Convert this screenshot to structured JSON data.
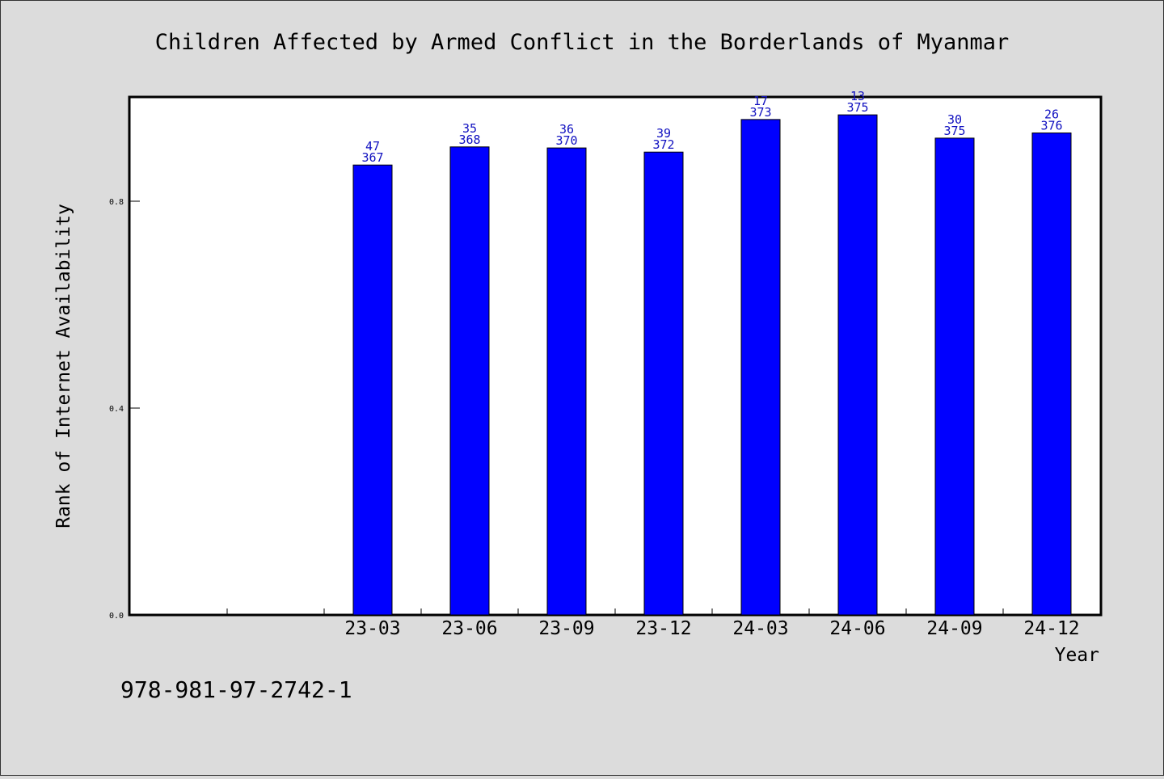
{
  "chart_data": {
    "type": "bar",
    "title": "Children Affected by Armed Conflict in the Borderlands of Myanmar",
    "xlabel": "Year",
    "ylabel": "Rank of Internet Availability",
    "categories": [
      "23-03",
      "23-06",
      "23-09",
      "23-12",
      "24-03",
      "24-06",
      "24-09",
      "24-12"
    ],
    "values": [
      0.87,
      0.905,
      0.903,
      0.895,
      0.958,
      0.967,
      0.922,
      0.932
    ],
    "labels_top": [
      "47",
      "35",
      "36",
      "39",
      "17",
      "13",
      "30",
      "26"
    ],
    "labels_bottom": [
      "367",
      "368",
      "370",
      "372",
      "373",
      "375",
      "375",
      "376"
    ],
    "yticks": [
      "0.0",
      "0.4",
      "0.8"
    ],
    "ylim": [
      0,
      1.0
    ],
    "grid": false,
    "bar_color": "#0000ff",
    "label_color": "#1010c0"
  },
  "footer_text": "978-981-97-2742-1"
}
